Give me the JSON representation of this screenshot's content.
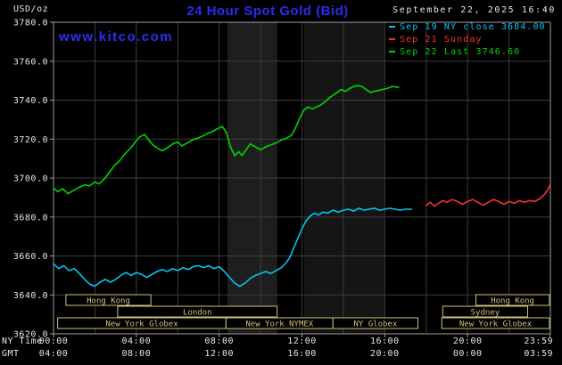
{
  "meta": {
    "units_label": "USD/oz",
    "title": "24 Hour Spot Gold (Bid)",
    "datetime": "September 22, 2025 16:40",
    "watermark": "www.kitco.com",
    "ny_time_label": "NY Time",
    "gmt_label": "GMT"
  },
  "colors": {
    "background": "#000000",
    "title_blue": "#2a2af2",
    "watermark_blue": "#2d2df5",
    "text_white": "#e6e6e6",
    "grid": "#3d3d3d",
    "axis_border": "#9e9e9e",
    "session_tan": "#cfc07c",
    "cyan": "#00c6f0",
    "red": "#f83030",
    "green": "#00d400"
  },
  "legend": [
    {
      "id": "sep19",
      "label": "Sep 19 NY close 3684.00",
      "color_key": "cyan"
    },
    {
      "id": "sep21",
      "label": "Sep 21 Sunday",
      "color_key": "red"
    },
    {
      "id": "sep22",
      "label": "Sep 22 Last 3746.60",
      "color_key": "green"
    }
  ],
  "chart_data": {
    "type": "line",
    "title": "24 Hour Spot Gold (Bid)",
    "ylabel": "USD/oz",
    "ylim": [
      3620,
      3780
    ],
    "y_ticks": [
      3620,
      3640,
      3660,
      3680,
      3700,
      3720,
      3740,
      3760,
      3780
    ],
    "xlim_hours": [
      0,
      24
    ],
    "x_tick_hours": [
      0,
      4,
      8,
      12,
      16,
      20,
      23.98
    ],
    "x_ticks_ny": [
      "00:00",
      "04:00",
      "08:00",
      "12:00",
      "16:00",
      "20:00",
      "23:59"
    ],
    "x_ticks_gmt": [
      "04:00",
      "08:00",
      "12:00",
      "16:00",
      "20:00",
      "00:00",
      "03:59"
    ],
    "grid_hours": [
      2,
      4,
      6,
      8,
      10,
      12,
      14,
      16,
      18,
      20,
      22
    ],
    "grid_on": true,
    "legend_position": "top-right",
    "bands": [
      {
        "start": 8.4,
        "end": 10.8,
        "color": "#1e1e1e"
      },
      {
        "start": 12.1,
        "end": 16.0,
        "color": "#151515"
      }
    ],
    "series": [
      {
        "id": "sep19",
        "name": "Sep 19 NY close",
        "close": 3684.0,
        "color_key": "cyan",
        "points": [
          [
            0,
            3656
          ],
          [
            0.25,
            3653.5
          ],
          [
            0.5,
            3655
          ],
          [
            0.75,
            3652.5
          ],
          [
            1,
            3653.5
          ],
          [
            1.25,
            3651
          ],
          [
            1.5,
            3648
          ],
          [
            1.75,
            3645.5
          ],
          [
            2,
            3644.5
          ],
          [
            2.25,
            3646.5
          ],
          [
            2.5,
            3648
          ],
          [
            2.75,
            3646.5
          ],
          [
            3,
            3648
          ],
          [
            3.25,
            3650
          ],
          [
            3.5,
            3651.5
          ],
          [
            3.75,
            3650
          ],
          [
            4,
            3651.5
          ],
          [
            4.25,
            3650.5
          ],
          [
            4.5,
            3649
          ],
          [
            4.75,
            3650.5
          ],
          [
            5,
            3652
          ],
          [
            5.25,
            3653
          ],
          [
            5.5,
            3652
          ],
          [
            5.75,
            3653.5
          ],
          [
            6,
            3652.5
          ],
          [
            6.25,
            3654
          ],
          [
            6.5,
            3653
          ],
          [
            6.75,
            3654.5
          ],
          [
            7,
            3655
          ],
          [
            7.25,
            3654
          ],
          [
            7.5,
            3655
          ],
          [
            7.75,
            3653.5
          ],
          [
            8,
            3654.5
          ],
          [
            8.25,
            3652
          ],
          [
            8.5,
            3649
          ],
          [
            8.75,
            3646
          ],
          [
            9,
            3644.5
          ],
          [
            9.25,
            3646
          ],
          [
            9.5,
            3648.5
          ],
          [
            9.75,
            3650
          ],
          [
            10,
            3651
          ],
          [
            10.25,
            3652
          ],
          [
            10.5,
            3651
          ],
          [
            10.75,
            3652.5
          ],
          [
            11,
            3654
          ],
          [
            11.2,
            3656
          ],
          [
            11.4,
            3659
          ],
          [
            11.6,
            3664
          ],
          [
            11.8,
            3669
          ],
          [
            12,
            3674
          ],
          [
            12.2,
            3678
          ],
          [
            12.4,
            3680.5
          ],
          [
            12.6,
            3682
          ],
          [
            12.8,
            3681
          ],
          [
            13,
            3682.5
          ],
          [
            13.25,
            3682
          ],
          [
            13.5,
            3683.5
          ],
          [
            13.75,
            3682.5
          ],
          [
            14,
            3683.5
          ],
          [
            14.25,
            3684
          ],
          [
            14.5,
            3683
          ],
          [
            14.75,
            3684.5
          ],
          [
            15,
            3683.5
          ],
          [
            15.25,
            3684
          ],
          [
            15.5,
            3684.5
          ],
          [
            15.75,
            3683.5
          ],
          [
            16,
            3684
          ],
          [
            16.25,
            3684.5
          ],
          [
            16.5,
            3684
          ],
          [
            16.75,
            3683.5
          ],
          [
            17,
            3684
          ],
          [
            17.3,
            3684
          ]
        ]
      },
      {
        "id": "sep21",
        "name": "Sep 21 Sunday",
        "color_key": "red",
        "points": [
          [
            18,
            3686
          ],
          [
            18.2,
            3687.5
          ],
          [
            18.4,
            3685.5
          ],
          [
            18.6,
            3687
          ],
          [
            18.8,
            3688.5
          ],
          [
            19,
            3687.5
          ],
          [
            19.25,
            3689
          ],
          [
            19.5,
            3688
          ],
          [
            19.75,
            3686.5
          ],
          [
            20,
            3688
          ],
          [
            20.25,
            3689
          ],
          [
            20.5,
            3687.5
          ],
          [
            20.75,
            3686
          ],
          [
            21,
            3687.5
          ],
          [
            21.25,
            3689
          ],
          [
            21.5,
            3688
          ],
          [
            21.75,
            3686.5
          ],
          [
            22,
            3688
          ],
          [
            22.25,
            3687
          ],
          [
            22.5,
            3688.5
          ],
          [
            22.75,
            3687.5
          ],
          [
            23,
            3688.5
          ],
          [
            23.25,
            3688
          ],
          [
            23.5,
            3689.5
          ],
          [
            23.7,
            3691.5
          ],
          [
            23.85,
            3693.5
          ],
          [
            23.98,
            3696.5
          ]
        ]
      },
      {
        "id": "sep22",
        "name": "Sep 22",
        "last": 3746.6,
        "color_key": "green",
        "points": [
          [
            0,
            3695
          ],
          [
            0.2,
            3693
          ],
          [
            0.45,
            3694.5
          ],
          [
            0.7,
            3692
          ],
          [
            0.95,
            3693.5
          ],
          [
            1.2,
            3695
          ],
          [
            1.5,
            3696.5
          ],
          [
            1.75,
            3696
          ],
          [
            2,
            3698
          ],
          [
            2.2,
            3697
          ],
          [
            2.45,
            3699.5
          ],
          [
            2.7,
            3703
          ],
          [
            2.95,
            3706.5
          ],
          [
            3.2,
            3709
          ],
          [
            3.45,
            3712.5
          ],
          [
            3.7,
            3715
          ],
          [
            3.95,
            3718.5
          ],
          [
            4.15,
            3721
          ],
          [
            4.4,
            3722.5
          ],
          [
            4.6,
            3719.5
          ],
          [
            4.8,
            3717
          ],
          [
            5,
            3715.5
          ],
          [
            5.25,
            3714
          ],
          [
            5.5,
            3715.5
          ],
          [
            5.75,
            3717.5
          ],
          [
            6,
            3718.5
          ],
          [
            6.2,
            3716.5
          ],
          [
            6.45,
            3718
          ],
          [
            6.7,
            3719.5
          ],
          [
            6.95,
            3720.5
          ],
          [
            7.2,
            3721.5
          ],
          [
            7.45,
            3723
          ],
          [
            7.7,
            3724
          ],
          [
            7.95,
            3725.5
          ],
          [
            8.15,
            3726.5
          ],
          [
            8.35,
            3723.5
          ],
          [
            8.55,
            3716
          ],
          [
            8.75,
            3711.5
          ],
          [
            8.95,
            3713.5
          ],
          [
            9.1,
            3711.5
          ],
          [
            9.3,
            3714.5
          ],
          [
            9.5,
            3717.5
          ],
          [
            9.75,
            3716
          ],
          [
            10,
            3714.5
          ],
          [
            10.25,
            3716
          ],
          [
            10.5,
            3717
          ],
          [
            10.75,
            3718
          ],
          [
            11,
            3719.5
          ],
          [
            11.25,
            3720.5
          ],
          [
            11.5,
            3722
          ],
          [
            11.7,
            3726
          ],
          [
            11.9,
            3731
          ],
          [
            12.1,
            3735
          ],
          [
            12.3,
            3736.5
          ],
          [
            12.5,
            3735.5
          ],
          [
            12.7,
            3736.5
          ],
          [
            12.9,
            3737.5
          ],
          [
            13.1,
            3739
          ],
          [
            13.3,
            3741
          ],
          [
            13.5,
            3742.5
          ],
          [
            13.7,
            3744
          ],
          [
            13.9,
            3745.5
          ],
          [
            14.1,
            3744.5
          ],
          [
            14.3,
            3746
          ],
          [
            14.5,
            3747
          ],
          [
            14.7,
            3747.5
          ],
          [
            14.9,
            3747
          ],
          [
            15.1,
            3745.5
          ],
          [
            15.3,
            3744
          ],
          [
            15.5,
            3744.5
          ],
          [
            15.7,
            3745
          ],
          [
            15.9,
            3745.5
          ],
          [
            16.1,
            3746
          ],
          [
            16.35,
            3747
          ],
          [
            16.67,
            3746.6
          ]
        ]
      }
    ],
    "sessions": [
      {
        "row": 0,
        "label": "Hong Kong",
        "start": 0.6,
        "end": 4.7
      },
      {
        "row": 0,
        "label": "Hong Kong",
        "start": 20.4,
        "end": 23.95
      },
      {
        "row": 1,
        "label": "London",
        "start": 3.1,
        "end": 10.8
      },
      {
        "row": 1,
        "label": "Sydney",
        "start": 18.8,
        "end": 22.9
      },
      {
        "row": 2,
        "label": "New York Globex",
        "start": 0.2,
        "end": 8.33
      },
      {
        "row": 2,
        "label": "New York NYMEX",
        "start": 8.33,
        "end": 13.5
      },
      {
        "row": 2,
        "label": "NY Globex",
        "start": 13.5,
        "end": 17.6
      },
      {
        "row": 2,
        "label": "New York Globex",
        "start": 18.75,
        "end": 23.95
      }
    ]
  }
}
